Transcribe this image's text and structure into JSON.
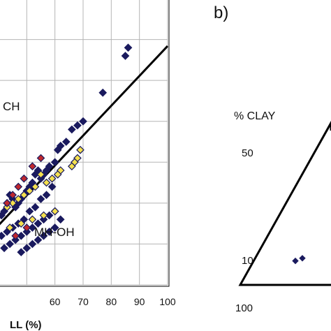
{
  "chart_data": [
    {
      "type": "scatter",
      "xlabel": "LL (%)",
      "x_ticks": [
        "60",
        "70",
        "80",
        "90",
        "100"
      ],
      "xlim": [
        40,
        100
      ],
      "ylim": [
        0,
        70
      ],
      "grid": true,
      "zone_labels": [
        "CH",
        "MH-OH"
      ],
      "reference_line": {
        "from": [
          40,
          14.6
        ],
        "to": [
          100,
          58.4
        ]
      },
      "series": [
        {
          "color": "#1a1a5e",
          "x": [
            86,
            85,
            77,
            70,
            68,
            66,
            64,
            62,
            61,
            60,
            58,
            57,
            56,
            55,
            54,
            53,
            52,
            51,
            50,
            49,
            48,
            47,
            46,
            45,
            44,
            43,
            42,
            41,
            60,
            58,
            56,
            54,
            52,
            50,
            48,
            46,
            44,
            42,
            59,
            57,
            55,
            53,
            51,
            49,
            47,
            45,
            43,
            41,
            62,
            60,
            58,
            56,
            54,
            52,
            50,
            48
          ],
          "y": [
            58,
            56,
            47,
            40,
            39,
            38,
            35,
            34,
            33,
            30,
            29,
            28,
            27,
            26,
            28,
            27,
            25,
            24,
            23,
            22,
            21,
            20,
            19,
            21,
            22,
            20,
            18,
            17,
            18,
            17,
            16,
            15,
            14,
            13,
            12,
            11,
            10,
            9,
            24,
            22,
            21,
            19,
            18,
            16,
            15,
            14,
            13,
            12,
            16,
            14,
            13,
            12,
            11,
            10,
            9,
            8
          ]
        },
        {
          "color": "#f4e04d",
          "x": [
            69,
            68,
            67,
            66,
            62,
            61,
            59,
            57,
            55,
            53,
            51,
            49,
            47,
            45,
            43,
            60,
            56,
            52,
            48,
            44
          ],
          "y": [
            33,
            31,
            30,
            29,
            28,
            27,
            26,
            25,
            27,
            24,
            23,
            22,
            21,
            20,
            19,
            18,
            17,
            16,
            15,
            14
          ]
        },
        {
          "color": "#c0282d",
          "x": [
            55,
            52,
            49,
            47,
            45,
            43,
            50,
            46
          ],
          "y": [
            31,
            29,
            26,
            24,
            22,
            20,
            14,
            12
          ]
        }
      ]
    },
    {
      "type": "ternary",
      "panel_label": "b)",
      "axis_label": "% CLAY",
      "tick_labels": [
        "50",
        "10"
      ],
      "base_tick_labels": [
        "100"
      ],
      "points": [
        {
          "clay": 9,
          "color": "#1a1a5e"
        },
        {
          "clay": 10,
          "color": "#1a1a5e"
        }
      ]
    }
  ]
}
